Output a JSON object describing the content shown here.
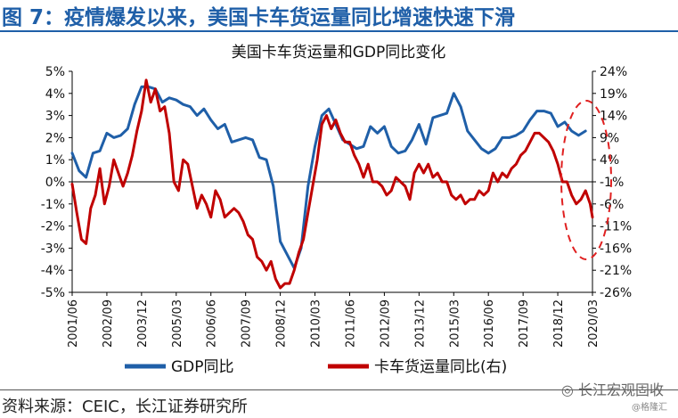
{
  "header": {
    "title": "图 7：疫情爆发以来，美国卡车货运量同比增速快速下滑"
  },
  "footer": {
    "source": "资料来源：CEIC，长江证券研究所"
  },
  "watermark": {
    "text": "长江宏观固收",
    "sub": "@格隆汇",
    "icon": "wechat-icon"
  },
  "colors": {
    "gdp": "#1f5fa8",
    "truck": "#c00000",
    "title_blue": "#1f5fa8",
    "highlight": "#e02020"
  },
  "chart_data": {
    "type": "line",
    "title": "美国卡车货运量和GDP同比变化",
    "x_ticks": [
      "2001/06",
      "2002/09",
      "2003/12",
      "2005/03",
      "2006/06",
      "2007/09",
      "2008/12",
      "2010/03",
      "2011/06",
      "2012/09",
      "2013/12",
      "2015/03",
      "2016/06",
      "2017/09",
      "2018/12",
      "2020/03"
    ],
    "x_range": [
      "2001-06",
      "2020-03"
    ],
    "y_left": {
      "ticks": [
        "5%",
        "4%",
        "3%",
        "2%",
        "1%",
        "0%",
        "-1%",
        "-2%",
        "-3%",
        "-4%",
        "-5%"
      ],
      "range": [
        -5,
        5
      ]
    },
    "y_right": {
      "ticks": [
        "24%",
        "19%",
        "14%",
        "9%",
        "4%",
        "-1%",
        "-6%",
        "-11%",
        "-16%",
        "-21%",
        "-26%"
      ],
      "range": [
        -26,
        24
      ]
    },
    "legend": {
      "position": "bottom"
    },
    "highlight": "dashed ellipse around 2019–2020 truck tonnage decline",
    "series": [
      {
        "name": "GDP同比",
        "axis": "left",
        "color": "#1f5fa8",
        "points": [
          [
            "2001-06",
            1.3
          ],
          [
            "2001-09",
            0.5
          ],
          [
            "2001-12",
            0.2
          ],
          [
            "2002-03",
            1.3
          ],
          [
            "2002-06",
            1.4
          ],
          [
            "2002-09",
            2.2
          ],
          [
            "2002-12",
            2.0
          ],
          [
            "2003-03",
            2.1
          ],
          [
            "2003-06",
            2.4
          ],
          [
            "2003-09",
            3.5
          ],
          [
            "2003-12",
            4.3
          ],
          [
            "2004-03",
            4.3
          ],
          [
            "2004-06",
            4.2
          ],
          [
            "2004-09",
            3.6
          ],
          [
            "2004-12",
            3.8
          ],
          [
            "2005-03",
            3.7
          ],
          [
            "2005-06",
            3.5
          ],
          [
            "2005-09",
            3.4
          ],
          [
            "2005-12",
            3.0
          ],
          [
            "2006-03",
            3.3
          ],
          [
            "2006-06",
            2.8
          ],
          [
            "2006-09",
            2.4
          ],
          [
            "2006-12",
            2.6
          ],
          [
            "2007-03",
            1.8
          ],
          [
            "2007-06",
            1.9
          ],
          [
            "2007-09",
            2.0
          ],
          [
            "2007-12",
            1.9
          ],
          [
            "2008-03",
            1.1
          ],
          [
            "2008-06",
            1.0
          ],
          [
            "2008-09",
            -0.2
          ],
          [
            "2008-12",
            -2.7
          ],
          [
            "2009-03",
            -3.3
          ],
          [
            "2009-06",
            -3.9
          ],
          [
            "2009-09",
            -3.0
          ],
          [
            "2009-12",
            -0.2
          ],
          [
            "2010-03",
            1.6
          ],
          [
            "2010-06",
            3.0
          ],
          [
            "2010-09",
            3.3
          ],
          [
            "2010-12",
            2.6
          ],
          [
            "2011-03",
            1.9
          ],
          [
            "2011-06",
            1.7
          ],
          [
            "2011-09",
            1.5
          ],
          [
            "2011-12",
            1.6
          ],
          [
            "2012-03",
            2.5
          ],
          [
            "2012-06",
            2.2
          ],
          [
            "2012-09",
            2.5
          ],
          [
            "2012-12",
            1.6
          ],
          [
            "2013-03",
            1.3
          ],
          [
            "2013-06",
            1.4
          ],
          [
            "2013-09",
            1.9
          ],
          [
            "2013-12",
            2.6
          ],
          [
            "2014-03",
            1.7
          ],
          [
            "2014-06",
            2.9
          ],
          [
            "2014-09",
            3.0
          ],
          [
            "2014-12",
            3.1
          ],
          [
            "2015-03",
            4.0
          ],
          [
            "2015-06",
            3.4
          ],
          [
            "2015-09",
            2.3
          ],
          [
            "2015-12",
            1.9
          ],
          [
            "2016-03",
            1.5
          ],
          [
            "2016-06",
            1.3
          ],
          [
            "2016-09",
            1.5
          ],
          [
            "2016-12",
            2.0
          ],
          [
            "2017-03",
            2.0
          ],
          [
            "2017-06",
            2.1
          ],
          [
            "2017-09",
            2.3
          ],
          [
            "2017-12",
            2.8
          ],
          [
            "2018-03",
            3.2
          ],
          [
            "2018-06",
            3.2
          ],
          [
            "2018-09",
            3.1
          ],
          [
            "2018-12",
            2.5
          ],
          [
            "2019-03",
            2.7
          ],
          [
            "2019-06",
            2.3
          ],
          [
            "2019-09",
            2.1
          ],
          [
            "2019-12",
            2.3
          ]
        ]
      },
      {
        "name": "卡车货运量同比(右)",
        "axis": "right",
        "color": "#c00000",
        "points": [
          [
            "2001-06",
            -1.5
          ],
          [
            "2001-08",
            -8.0
          ],
          [
            "2001-10",
            -14.0
          ],
          [
            "2001-12",
            -15.0
          ],
          [
            "2002-02",
            -7.0
          ],
          [
            "2002-04",
            -4.0
          ],
          [
            "2002-06",
            2.0
          ],
          [
            "2002-08",
            -6.0
          ],
          [
            "2002-10",
            -2.0
          ],
          [
            "2002-12",
            4.0
          ],
          [
            "2003-02",
            1.0
          ],
          [
            "2003-04",
            -2.0
          ],
          [
            "2003-06",
            1.0
          ],
          [
            "2003-08",
            5.0
          ],
          [
            "2003-10",
            10.5
          ],
          [
            "2003-12",
            15.0
          ],
          [
            "2004-02",
            22.0
          ],
          [
            "2004-04",
            17.0
          ],
          [
            "2004-06",
            20.0
          ],
          [
            "2004-08",
            15.0
          ],
          [
            "2004-10",
            16.0
          ],
          [
            "2004-12",
            10.0
          ],
          [
            "2005-02",
            -1.0
          ],
          [
            "2005-04",
            -3.0
          ],
          [
            "2005-06",
            4.0
          ],
          [
            "2005-08",
            3.0
          ],
          [
            "2005-10",
            -2.0
          ],
          [
            "2005-12",
            -7.0
          ],
          [
            "2006-02",
            -4.0
          ],
          [
            "2006-04",
            -6.0
          ],
          [
            "2006-06",
            -9.0
          ],
          [
            "2006-08",
            -3.0
          ],
          [
            "2006-10",
            -5.0
          ],
          [
            "2006-12",
            -9.0
          ],
          [
            "2007-02",
            -8.0
          ],
          [
            "2007-04",
            -7.0
          ],
          [
            "2007-06",
            -8.0
          ],
          [
            "2007-08",
            -10.0
          ],
          [
            "2007-10",
            -13.0
          ],
          [
            "2007-12",
            -14.0
          ],
          [
            "2008-02",
            -18.0
          ],
          [
            "2008-04",
            -19.0
          ],
          [
            "2008-06",
            -21.0
          ],
          [
            "2008-08",
            -19.0
          ],
          [
            "2008-10",
            -23.0
          ],
          [
            "2008-12",
            -25.0
          ],
          [
            "2009-02",
            -24.0
          ],
          [
            "2009-04",
            -24.0
          ],
          [
            "2009-06",
            -21.0
          ],
          [
            "2009-08",
            -17.0
          ],
          [
            "2009-10",
            -14.0
          ],
          [
            "2009-12",
            -8.0
          ],
          [
            "2010-02",
            -2.0
          ],
          [
            "2010-04",
            4.0
          ],
          [
            "2010-06",
            12.0
          ],
          [
            "2010-08",
            14.0
          ],
          [
            "2010-10",
            11.0
          ],
          [
            "2010-12",
            13.0
          ],
          [
            "2011-02",
            10.0
          ],
          [
            "2011-04",
            8.0
          ],
          [
            "2011-06",
            8.0
          ],
          [
            "2011-08",
            5.0
          ],
          [
            "2011-10",
            3.0
          ],
          [
            "2011-12",
            0.0
          ],
          [
            "2012-02",
            3.0
          ],
          [
            "2012-04",
            -1.0
          ],
          [
            "2012-06",
            -1.0
          ],
          [
            "2012-08",
            -2.0
          ],
          [
            "2012-10",
            -4.0
          ],
          [
            "2012-12",
            -3.0
          ],
          [
            "2013-02",
            0.0
          ],
          [
            "2013-04",
            -1.0
          ],
          [
            "2013-06",
            -2.0
          ],
          [
            "2013-08",
            -5.0
          ],
          [
            "2013-10",
            1.0
          ],
          [
            "2013-12",
            3.0
          ],
          [
            "2014-02",
            1.0
          ],
          [
            "2014-04",
            3.0
          ],
          [
            "2014-06",
            0.0
          ],
          [
            "2014-08",
            1.0
          ],
          [
            "2014-10",
            -1.0
          ],
          [
            "2014-12",
            -1.0
          ],
          [
            "2015-02",
            -4.0
          ],
          [
            "2015-04",
            -5.0
          ],
          [
            "2015-06",
            -4.0
          ],
          [
            "2015-08",
            -6.0
          ],
          [
            "2015-10",
            -5.0
          ],
          [
            "2015-12",
            -5.0
          ],
          [
            "2016-02",
            -3.0
          ],
          [
            "2016-04",
            -4.0
          ],
          [
            "2016-06",
            -3.0
          ],
          [
            "2016-08",
            1.0
          ],
          [
            "2016-10",
            -1.0
          ],
          [
            "2016-12",
            1.0
          ],
          [
            "2017-02",
            0.0
          ],
          [
            "2017-04",
            2.0
          ],
          [
            "2017-06",
            3.0
          ],
          [
            "2017-08",
            5.0
          ],
          [
            "2017-10",
            6.0
          ],
          [
            "2017-12",
            8.0
          ],
          [
            "2018-02",
            10.0
          ],
          [
            "2018-04",
            10.0
          ],
          [
            "2018-06",
            9.0
          ],
          [
            "2018-08",
            8.0
          ],
          [
            "2018-10",
            6.0
          ],
          [
            "2018-12",
            3.0
          ],
          [
            "2019-02",
            -1.0
          ],
          [
            "2019-04",
            -1.0
          ],
          [
            "2019-06",
            -4.0
          ],
          [
            "2019-08",
            -6.0
          ],
          [
            "2019-10",
            -5.0
          ],
          [
            "2019-12",
            -3.0
          ],
          [
            "2020-02",
            -6.0
          ],
          [
            "2020-03",
            -9.0
          ]
        ]
      }
    ]
  }
}
